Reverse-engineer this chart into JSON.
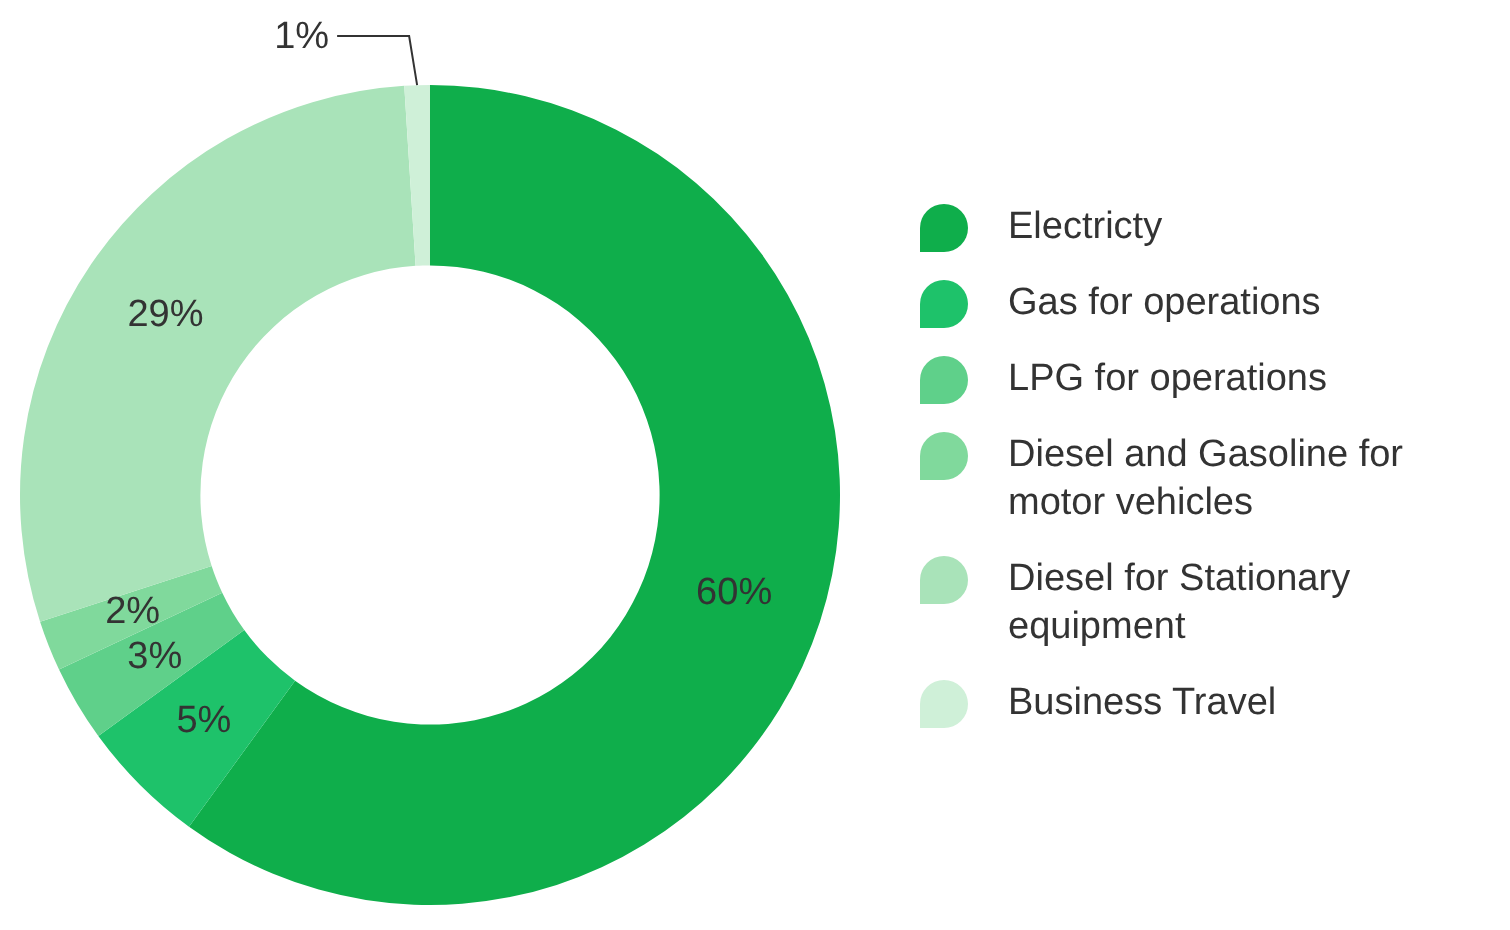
{
  "chart_data": {
    "type": "donut",
    "categories": [
      "Electricty",
      "Gas for operations",
      "LPG for operations",
      "Diesel and Gasoline for motor vehicles",
      "Diesel for Stationary equipment",
      "Business Travel"
    ],
    "values": [
      60,
      5,
      3,
      2,
      29,
      1
    ],
    "colors": [
      "#0fae4b",
      "#1ec26a",
      "#5fd08a",
      "#80d99c",
      "#a9e3b9",
      "#cff0d8"
    ],
    "value_labels": [
      "60%",
      "5%",
      "3%",
      "2%",
      "29%",
      "1%"
    ],
    "legend": "right"
  }
}
